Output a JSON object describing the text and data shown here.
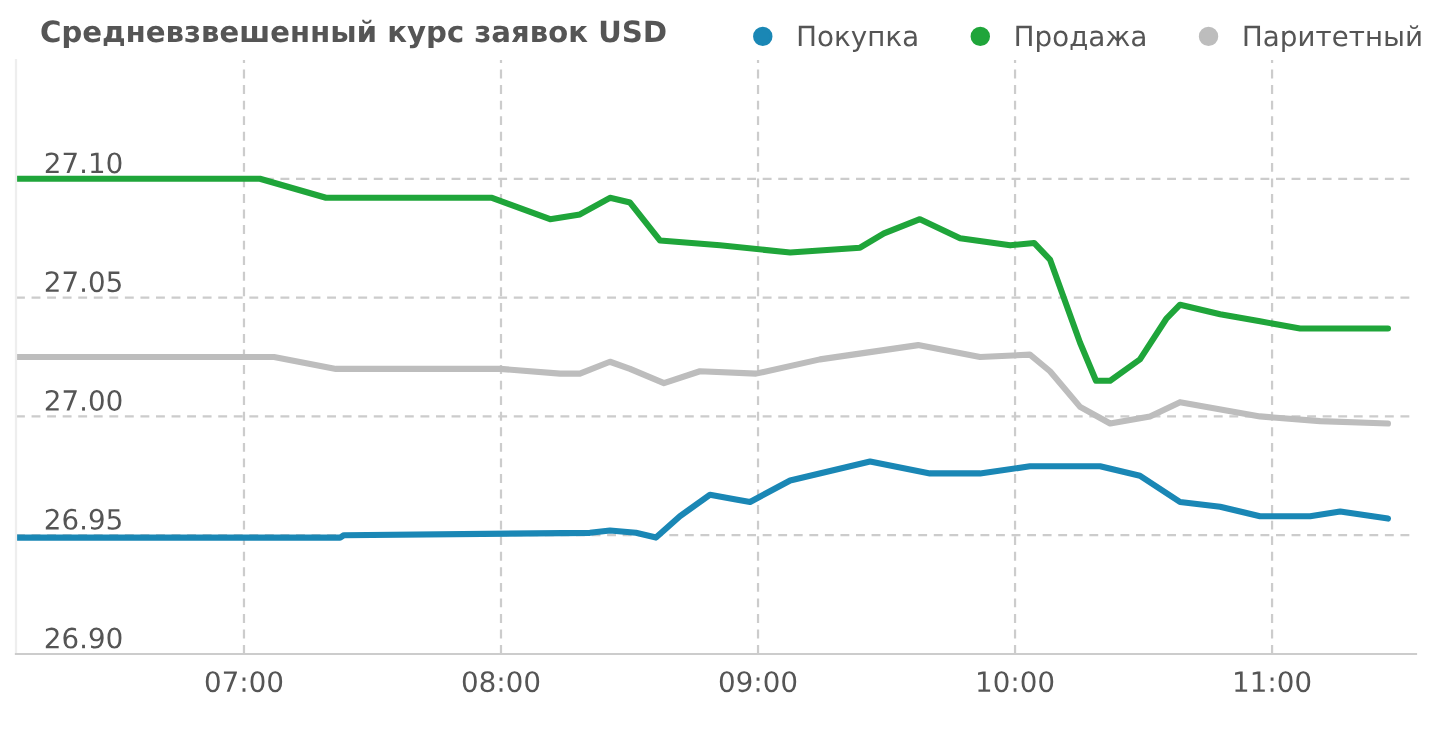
{
  "chart_data": {
    "type": "line",
    "title": "Средневзвешенный курс заявок USD",
    "x": [
      6.113,
      7.062,
      7.319,
      7.965,
      8.191,
      8.307,
      8.424,
      8.502,
      8.619,
      8.852,
      9.125,
      9.397,
      9.49,
      9.63,
      9.786,
      9.981,
      10.074,
      10.136,
      10.253,
      10.315,
      10.37,
      10.486,
      10.588,
      10.642,
      10.798,
      10.953,
      11.109,
      11.451
    ],
    "series": [
      {
        "name": "Покупка",
        "color": "#1a87b5",
        "x": [
          6.113,
          7.374,
          7.389,
          8.346,
          8.424,
          8.525,
          8.603,
          8.696,
          8.813,
          8.914,
          8.969,
          9.125,
          9.436,
          9.669,
          9.864,
          10.058,
          10.331,
          10.486,
          10.642,
          10.798,
          10.953,
          11.148,
          11.265,
          11.451
        ],
        "values": [
          26.949,
          26.949,
          26.95,
          26.951,
          26.952,
          26.951,
          26.949,
          26.958,
          26.967,
          26.965,
          26.964,
          26.973,
          26.981,
          26.976,
          26.976,
          26.979,
          26.979,
          26.975,
          26.964,
          26.962,
          26.958,
          26.958,
          26.96,
          26.957
        ]
      },
      {
        "name": "Продажа",
        "color": "#1fa53a",
        "values": [
          27.1,
          27.1,
          27.092,
          27.092,
          27.083,
          27.085,
          27.092,
          27.09,
          27.074,
          27.072,
          27.069,
          27.071,
          27.077,
          27.083,
          27.075,
          27.072,
          27.073,
          27.066,
          27.031,
          27.015,
          27.015,
          27.024,
          27.041,
          27.047,
          27.043,
          27.04,
          27.037,
          27.037
        ]
      },
      {
        "name": "Паритетный",
        "color": "#bdbdbd",
        "x": [
          6.113,
          7.117,
          7.358,
          7.996,
          8.23,
          8.307,
          8.424,
          8.502,
          8.634,
          8.774,
          8.992,
          9.241,
          9.623,
          9.864,
          10.058,
          10.136,
          10.253,
          10.37,
          10.525,
          10.642,
          10.953,
          11.187,
          11.451
        ],
        "values": [
          27.025,
          27.025,
          27.02,
          27.02,
          27.018,
          27.018,
          27.023,
          27.02,
          27.014,
          27.019,
          27.018,
          27.024,
          27.03,
          27.025,
          27.026,
          27.019,
          27.004,
          26.997,
          27.0,
          27.006,
          27.0,
          26.998,
          26.997
        ]
      }
    ],
    "xlim": [
      6.113,
      11.56
    ],
    "xticks": [
      {
        "value": 7,
        "label": "07:00"
      },
      {
        "value": 8,
        "label": "08:00"
      },
      {
        "value": 9,
        "label": "09:00"
      },
      {
        "value": 10,
        "label": "10:00"
      },
      {
        "value": 11,
        "label": "11:00"
      }
    ],
    "ylim": [
      26.9,
      27.15
    ],
    "yticks": [
      {
        "value": 26.9,
        "label": "26.90"
      },
      {
        "value": 26.95,
        "label": "26.95"
      },
      {
        "value": 27.0,
        "label": "27.00"
      },
      {
        "value": 27.05,
        "label": "27.05"
      },
      {
        "value": 27.1,
        "label": "27.10"
      }
    ],
    "grid": true,
    "legend": "top",
    "line_style": "solid"
  }
}
